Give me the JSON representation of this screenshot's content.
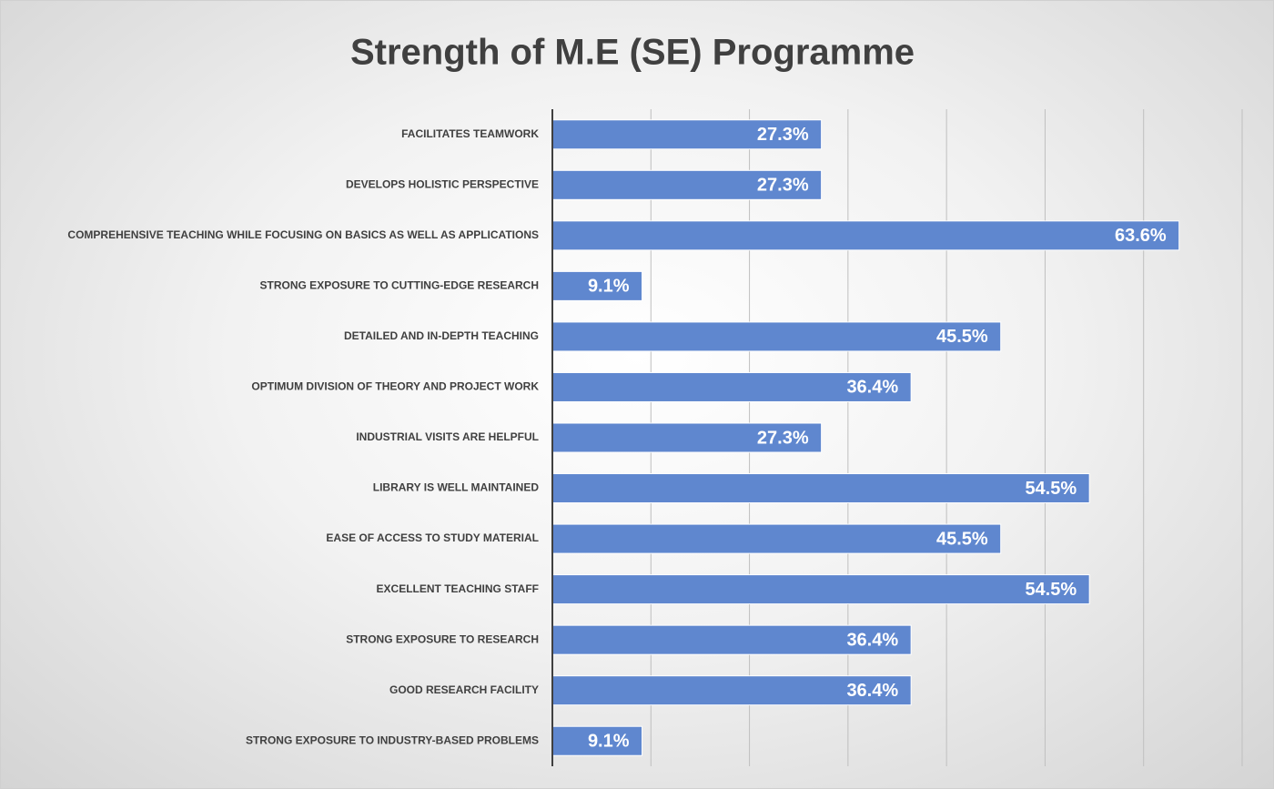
{
  "chart_data": {
    "type": "bar",
    "orientation": "horizontal",
    "title": "Strength of M.E (SE) Programme",
    "categories": [
      "FACILITATES TEAMWORK",
      "DEVELOPS HOLISTIC PERSPECTIVE",
      "COMPREHENSIVE TEACHING WHILE FOCUSING ON BASICS AS WELL AS APPLICATIONS",
      "STRONG EXPOSURE TO CUTTING-EDGE RESEARCH",
      "DETAILED AND IN-DEPTH TEACHING",
      "OPTIMUM DIVISION OF THEORY AND PROJECT WORK",
      "INDUSTRIAL VISITS ARE HELPFUL",
      "LIBRARY IS WELL MAINTAINED",
      "EASE OF ACCESS TO STUDY MATERIAL",
      "EXCELLENT TEACHING STAFF",
      "STRONG EXPOSURE TO RESEARCH",
      "GOOD RESEARCH FACILITY",
      "STRONG EXPOSURE TO INDUSTRY-BASED PROBLEMS"
    ],
    "values": [
      27.3,
      27.3,
      63.6,
      9.1,
      45.5,
      36.4,
      27.3,
      54.5,
      45.5,
      54.5,
      36.4,
      36.4,
      9.1
    ],
    "value_labels": [
      "27.3%",
      "27.3%",
      "63.6%",
      "9.1%",
      "45.5%",
      "36.4%",
      "27.3%",
      "54.5%",
      "45.5%",
      "54.5%",
      "36.4%",
      "36.4%",
      "9.1%"
    ],
    "color": "#5f87cf",
    "xlim": [
      0,
      70
    ],
    "xticks": [
      10,
      20,
      30,
      40,
      50,
      60,
      70
    ],
    "grid": true
  }
}
